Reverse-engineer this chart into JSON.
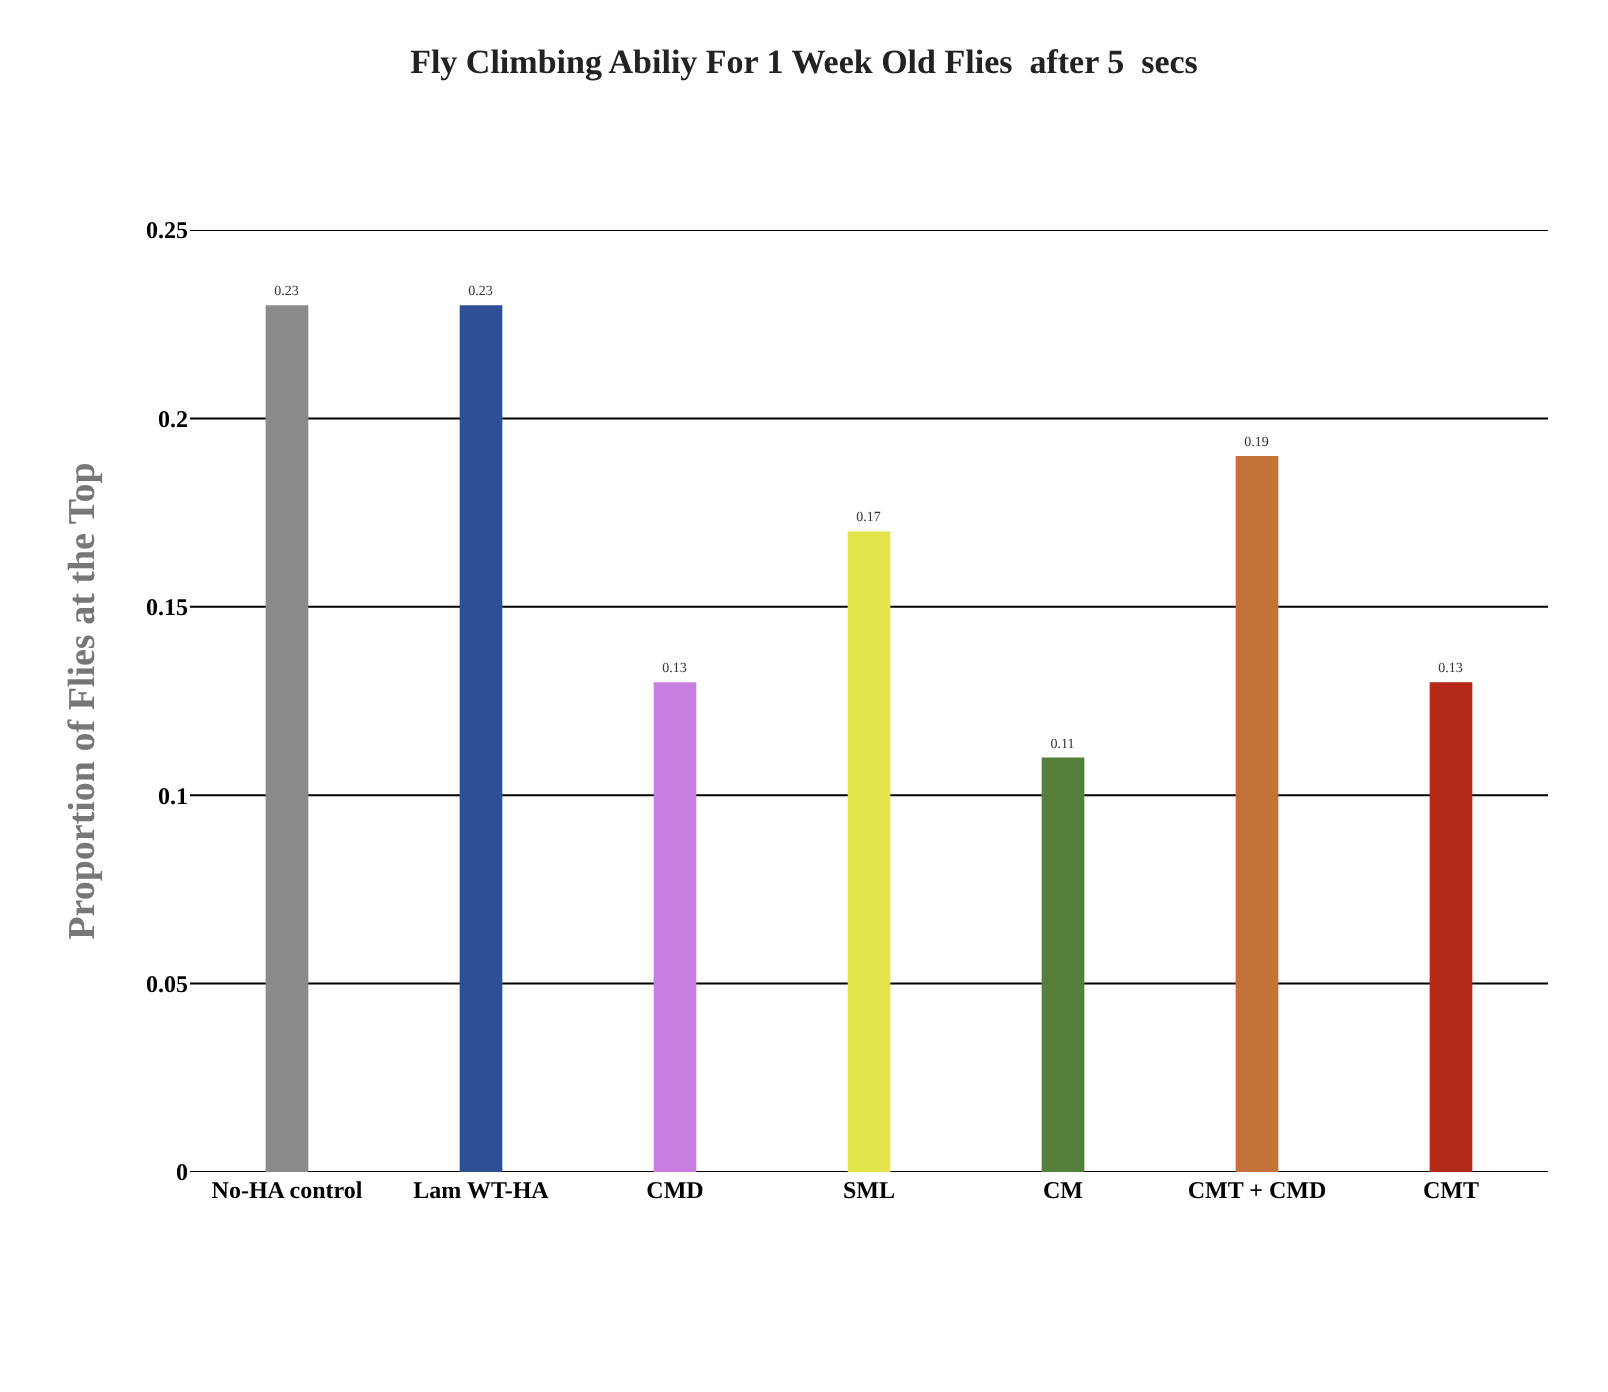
{
  "chart_data": {
    "type": "bar",
    "title": "Fly Climbing Abiliy For 1 Week Old Flies  after 5  secs",
    "ylabel": "Proportion of Flies at the Top",
    "categories": [
      "No-HA control",
      "Lam WT-HA",
      "CMD",
      "SML",
      "CM",
      "CMT + CMD",
      "CMT"
    ],
    "values": [
      0.23,
      0.23,
      0.13,
      0.17,
      0.11,
      0.19,
      0.13
    ],
    "colors": [
      "#8a8a8a",
      "#2e4f94",
      "#c77ee0",
      "#e3e34a",
      "#557f3a",
      "#c5723a",
      "#b32a18"
    ],
    "ylim": [
      0,
      0.25
    ],
    "yticks": [
      0,
      0.05,
      0.1,
      0.15,
      0.2,
      0.25
    ],
    "grid": "y",
    "data_labels": true
  }
}
